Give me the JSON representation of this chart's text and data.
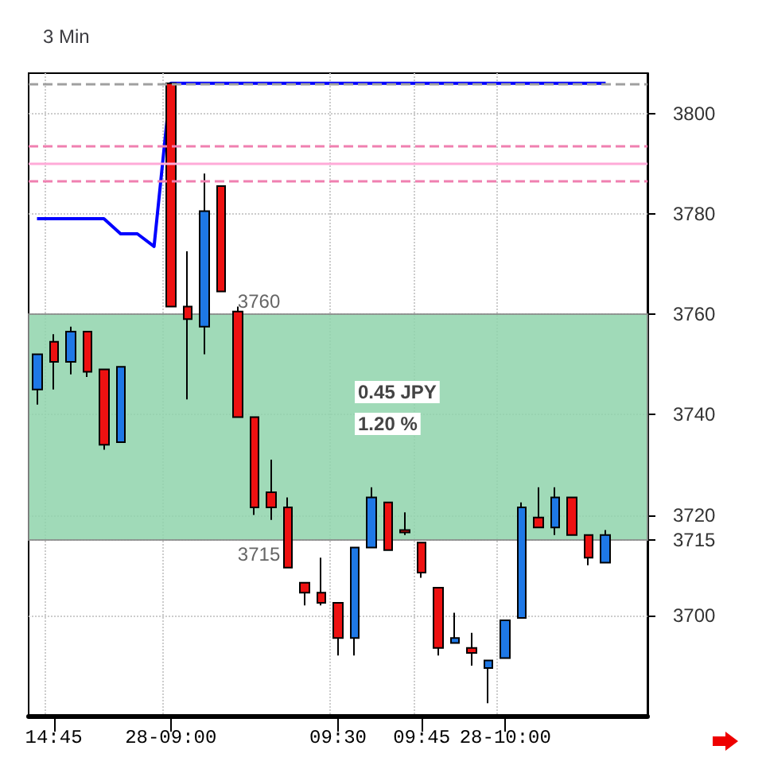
{
  "chart_data": {
    "type": "candlestick",
    "title": "3 Min",
    "categories": [
      null,
      "14:45",
      null,
      null,
      null,
      null,
      null,
      null,
      "28-09:00",
      null,
      null,
      null,
      null,
      null,
      null,
      null,
      null,
      null,
      "09:30",
      null,
      null,
      null,
      null,
      "09:45",
      null,
      null,
      null,
      null,
      "28-10:00",
      null,
      null,
      null,
      null,
      null,
      null,
      null,
      null
    ],
    "series": [
      {
        "ohlc": [
          [
            3745,
            3752,
            3742,
            3752
          ],
          [
            3754.5,
            3756,
            3745,
            3750.5
          ],
          [
            3750.5,
            3757.5,
            3748,
            3756.5
          ],
          [
            3756.5,
            3756.5,
            3747.5,
            3748.5
          ],
          [
            3749,
            3749,
            3733,
            3734
          ],
          [
            3734.5,
            3749.5,
            3734.5,
            3749.5
          ],
          null,
          null,
          [
            3806,
            3806,
            3761.5,
            3761.5
          ],
          [
            3761.5,
            3772.5,
            3743,
            3759
          ],
          [
            3757.5,
            3788,
            3752,
            3780.5
          ],
          [
            3785.5,
            3785.5,
            3764.5,
            3764.5
          ],
          [
            3760.5,
            3761.5,
            3739.5,
            3739.5
          ],
          [
            3739.5,
            3739.5,
            3720,
            3721.5
          ],
          [
            3724.5,
            3731,
            3719,
            3721.5
          ],
          [
            3721.5,
            3723.5,
            3709.5,
            3709.5
          ],
          [
            3706.5,
            3706.5,
            3702,
            3704.5
          ],
          [
            3704.5,
            3711.5,
            3702,
            3702.5
          ],
          [
            3702.5,
            3702.5,
            3692,
            3695.5
          ],
          [
            3695.5,
            3713.5,
            3692,
            3713.5
          ],
          [
            3713.5,
            3725.5,
            3713.5,
            3723.5
          ],
          [
            3722.5,
            3722.5,
            3713,
            3713
          ],
          [
            3717,
            3720.5,
            3716,
            3716.5
          ],
          [
            3714.5,
            3714.5,
            3707.5,
            3708.5
          ],
          [
            3705.5,
            3705.5,
            3692,
            3693.5
          ],
          [
            3694.5,
            3700.5,
            3694.5,
            3695.5
          ],
          [
            3693.5,
            3696.5,
            3690,
            3692.5
          ],
          [
            3689.5,
            3691,
            3682.5,
            3691
          ],
          [
            3691.5,
            3699,
            3691.5,
            3699
          ],
          [
            3699.5,
            3722.5,
            3699.5,
            3721.5
          ],
          [
            3719.5,
            3725.5,
            3717.5,
            3717.5
          ],
          [
            3717.5,
            3725.5,
            3716,
            3723.5
          ],
          [
            3723.5,
            3723.5,
            3716,
            3716
          ],
          [
            3716,
            3716,
            3710,
            3711.5
          ],
          [
            3710.5,
            3717,
            3710.5,
            3716
          ],
          null,
          null
        ],
        "colors": [
          "#1e78e6",
          "#ee1111",
          "#1e78e6",
          "#ee1111",
          "#ee1111",
          "#1e78e6",
          null,
          null,
          "#ee1111",
          "#ee1111",
          "#1e78e6",
          "#ee1111",
          "#ee1111",
          "#ee1111",
          "#ee1111",
          "#ee1111",
          "#ee1111",
          "#ee1111",
          "#ee1111",
          "#1e78e6",
          "#1e78e6",
          "#ee1111",
          "#ee1111",
          "#ee1111",
          "#ee1111",
          "#1e78e6",
          "#ee1111",
          "#1e78e6",
          "#1e78e6",
          "#1e78e6",
          "#ee1111",
          "#1e78e6",
          "#ee1111",
          "#ee1111",
          "#1e78e6",
          null,
          null
        ]
      },
      {
        "type": "line",
        "color": "#0000ff",
        "values": [
          3779,
          3779,
          3779,
          3779,
          3779,
          3776,
          3776,
          3773.5,
          3806,
          3806,
          3806,
          3806,
          3806,
          3806,
          3806,
          3806,
          3806,
          3806,
          3806,
          3806,
          3806,
          3806,
          3806,
          3806,
          3806,
          3806,
          3806,
          3806,
          3806,
          3806,
          3806,
          3806,
          3806,
          3806,
          3806,
          null,
          null
        ]
      }
    ],
    "ylim": [
      3680,
      3808
    ],
    "yticks": [
      3700,
      3715,
      3720,
      3740,
      3760,
      3780,
      3800
    ],
    "ref_lines": [
      {
        "axis": "y",
        "value": 3806,
        "color": "#a0a0a0",
        "line_style": "dashed"
      },
      {
        "axis": "y",
        "value": 3793.5,
        "color": "#f080b0",
        "line_style": "dashed"
      },
      {
        "axis": "y",
        "value": 3790,
        "color": "#ffaad8",
        "line_style": "solid"
      },
      {
        "axis": "y",
        "value": 3786.5,
        "color": "#f080b0",
        "line_style": "dashed"
      }
    ],
    "bands": [
      {
        "axis": "y",
        "from": 3715,
        "to": 3760,
        "color": "#8fd4ab"
      }
    ],
    "annotations": [
      {
        "text": "3760",
        "y": 3760
      },
      {
        "text": "3715",
        "y": 3715
      },
      "0.45 JPY",
      "1.20 %"
    ],
    "grid": true,
    "legend": false,
    "marker": "none"
  }
}
